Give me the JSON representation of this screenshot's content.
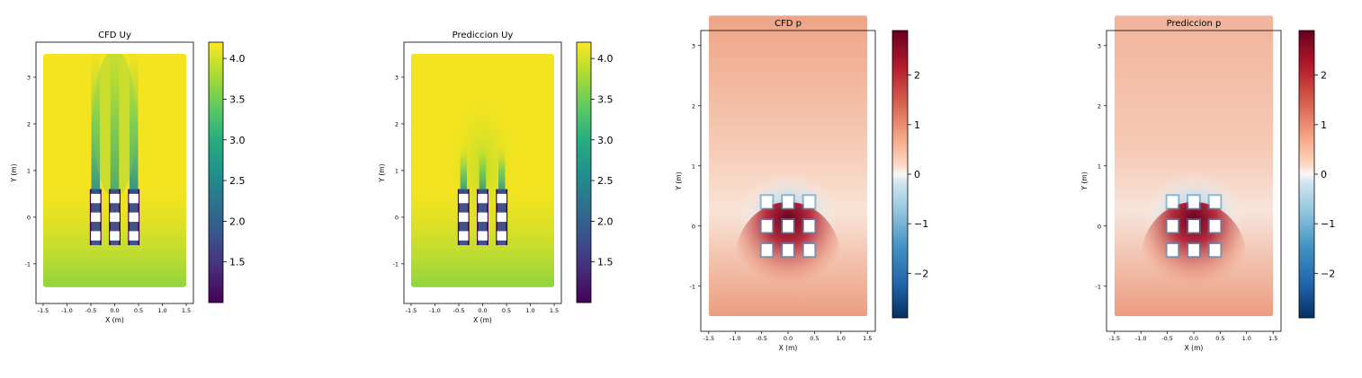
{
  "chart_data": [
    {
      "type": "heatmap",
      "title": "CFD Uy",
      "field": "Uy",
      "xlabel": "X (m)",
      "ylabel": "Y (m)",
      "xlim": [
        -1.65,
        1.65
      ],
      "ylim": [
        -1.85,
        3.75
      ],
      "xticks": [
        -1.5,
        -1.0,
        -0.5,
        0.0,
        0.5,
        1.0,
        1.5
      ],
      "xtick_labels": [
        "-1.5",
        "-1.0",
        "-0.5",
        "0.0",
        "0.5",
        "1.0",
        "1.5"
      ],
      "yticks": [
        -1,
        0,
        1,
        2,
        3
      ],
      "ytick_labels": [
        "-1",
        "0",
        "1",
        "2",
        "3"
      ],
      "domain": {
        "x": [
          -1.5,
          1.5
        ],
        "y": [
          -1.5,
          3.5
        ]
      },
      "colormap": "viridis",
      "colorbar": {
        "min": 1.0,
        "max": 4.2,
        "ticks": [
          1.5,
          2.0,
          2.5,
          3.0,
          3.5,
          4.0
        ],
        "tick_labels": [
          "1.5",
          "2.0",
          "2.5",
          "3.0",
          "3.5",
          "4.0"
        ]
      },
      "obstacles": {
        "x_centers": [
          -0.4,
          0.0,
          0.4
        ],
        "y_centers": [
          -0.4,
          0.0,
          0.4
        ],
        "size": 0.2
      },
      "background_color": "#f4e31f",
      "grid": false
    },
    {
      "type": "heatmap",
      "title": "Prediccion Uy",
      "field": "Uy",
      "xlabel": "X (m)",
      "ylabel": "Y (m)",
      "xlim": [
        -1.65,
        1.65
      ],
      "ylim": [
        -1.85,
        3.75
      ],
      "xticks": [
        -1.5,
        -1.0,
        -0.5,
        0.0,
        0.5,
        1.0,
        1.5
      ],
      "xtick_labels": [
        "-1.5",
        "-1.0",
        "-0.5",
        "0.0",
        "0.5",
        "1.0",
        "1.5"
      ],
      "yticks": [
        -1,
        0,
        1,
        2,
        3
      ],
      "ytick_labels": [
        "-1",
        "0",
        "1",
        "2",
        "3"
      ],
      "domain": {
        "x": [
          -1.5,
          1.5
        ],
        "y": [
          -1.5,
          3.5
        ]
      },
      "colormap": "viridis",
      "colorbar": {
        "min": 1.0,
        "max": 4.2,
        "ticks": [
          1.5,
          2.0,
          2.5,
          3.0,
          3.5,
          4.0
        ],
        "tick_labels": [
          "1.5",
          "2.0",
          "2.5",
          "3.0",
          "3.5",
          "4.0"
        ]
      },
      "obstacles": {
        "x_centers": [
          -0.4,
          0.0,
          0.4
        ],
        "y_centers": [
          -0.4,
          0.0,
          0.4
        ],
        "size": 0.2
      },
      "background_color": "#f4e31f",
      "grid": false
    },
    {
      "type": "heatmap",
      "title": "CFD p",
      "field": "p",
      "xlabel": "X (m)",
      "ylabel": "Y (m)",
      "xlim": [
        -1.65,
        1.65
      ],
      "ylim": [
        -1.75,
        3.25
      ],
      "xticks": [
        -1.5,
        -1.0,
        -0.5,
        0.0,
        0.5,
        1.0,
        1.5
      ],
      "xtick_labels": [
        "-1.5",
        "-1.0",
        "-0.5",
        "0.0",
        "0.5",
        "1.0",
        "1.5"
      ],
      "yticks": [
        -1,
        0,
        1,
        2,
        3
      ],
      "ytick_labels": [
        "-1",
        "0",
        "1",
        "2",
        "3"
      ],
      "domain": {
        "x": [
          -1.5,
          1.5
        ],
        "y": [
          -1.5,
          3.5
        ]
      },
      "colormap": "RdBu_r",
      "colorbar": {
        "min": -2.9,
        "max": 2.9,
        "ticks": [
          -2,
          -1,
          0,
          1,
          2
        ],
        "tick_labels": [
          "−2",
          "−1",
          "0",
          "1",
          "2"
        ]
      },
      "obstacles": {
        "x_centers": [
          -0.4,
          0.0,
          0.4
        ],
        "y_centers": [
          -0.4,
          0.0,
          0.4
        ],
        "size": 0.2
      },
      "background_color": "#f0a88c",
      "grid": false
    },
    {
      "type": "heatmap",
      "title": "Prediccion p",
      "field": "p",
      "xlabel": "X (m)",
      "ylabel": "Y (m)",
      "xlim": [
        -1.65,
        1.65
      ],
      "ylim": [
        -1.75,
        3.25
      ],
      "xticks": [
        -1.5,
        -1.0,
        -0.5,
        0.0,
        0.5,
        1.0,
        1.5
      ],
      "xtick_labels": [
        "-1.5",
        "-1.0",
        "-0.5",
        "0.0",
        "0.5",
        "1.0",
        "1.5"
      ],
      "yticks": [
        -1,
        0,
        1,
        2,
        3
      ],
      "ytick_labels": [
        "-1",
        "0",
        "1",
        "2",
        "3"
      ],
      "domain": {
        "x": [
          -1.5,
          1.5
        ],
        "y": [
          -1.5,
          3.5
        ]
      },
      "colormap": "RdBu_r",
      "colorbar": {
        "min": -2.9,
        "max": 2.9,
        "ticks": [
          -2,
          -1,
          0,
          1,
          2
        ],
        "tick_labels": [
          "−2",
          "−1",
          "0",
          "1",
          "2"
        ]
      },
      "obstacles": {
        "x_centers": [
          -0.4,
          0.0,
          0.4
        ],
        "y_centers": [
          -0.4,
          0.0,
          0.4
        ],
        "size": 0.2
      },
      "background_color": "#f2b49c",
      "grid": false
    }
  ]
}
